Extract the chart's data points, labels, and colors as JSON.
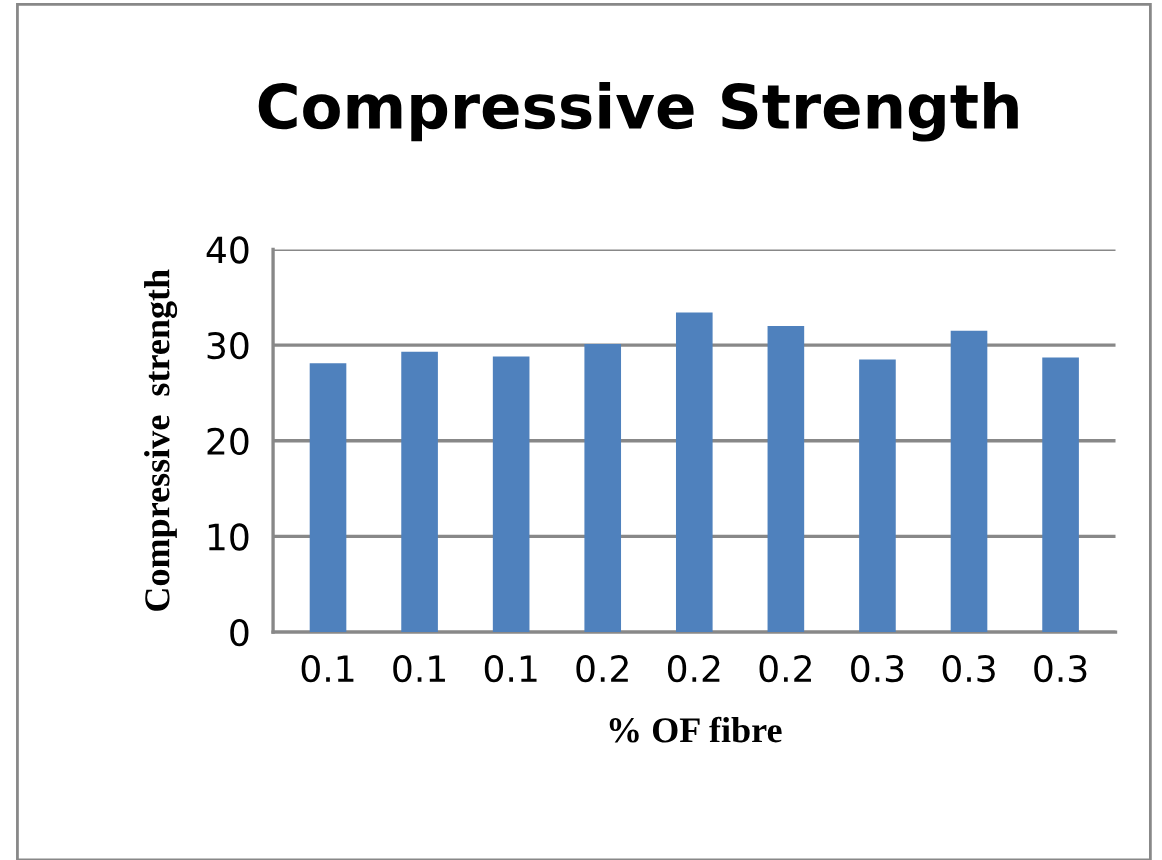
{
  "chart_data": {
    "type": "bar",
    "title": "Compressive Strength",
    "xlabel": "% OF fibre",
    "ylabel": "Compressive  strength",
    "categories": [
      "0.1",
      "0.1",
      "0.1",
      "0.2",
      "0.2",
      "0.2",
      "0.3",
      "0.3",
      "0.3"
    ],
    "values": [
      28.1,
      29.3,
      28.8,
      30.1,
      33.4,
      32.0,
      28.5,
      31.5,
      28.7
    ],
    "color": "#4f81bd",
    "ylim": [
      0,
      40
    ],
    "yticks": [
      0,
      10,
      20,
      30,
      40
    ],
    "grid": "y"
  }
}
